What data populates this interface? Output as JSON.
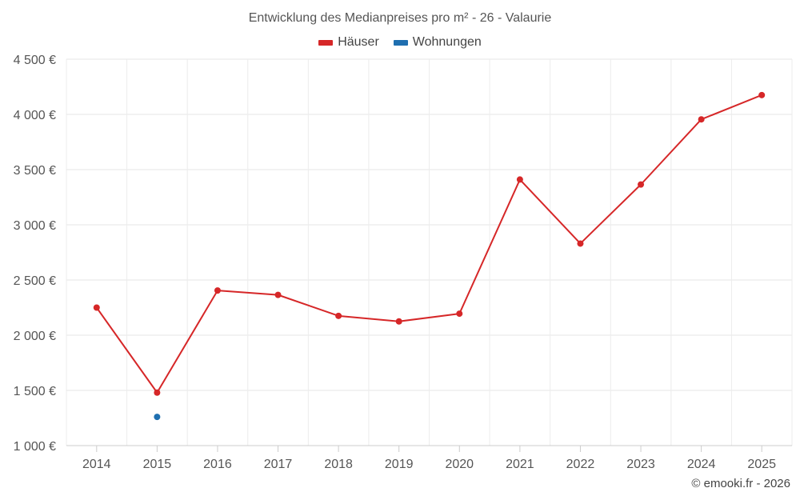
{
  "chart_data": {
    "type": "line",
    "title": "Entwicklung des Medianpreises pro m² - 26 - Valaurie",
    "xlabel": "",
    "ylabel": "",
    "categories": [
      "2014",
      "2015",
      "2016",
      "2017",
      "2018",
      "2019",
      "2020",
      "2021",
      "2022",
      "2023",
      "2024",
      "2025"
    ],
    "ylim": [
      1000,
      4500
    ],
    "yticks": [
      1000,
      1500,
      2000,
      2500,
      3000,
      3500,
      4000,
      4500
    ],
    "ytick_labels": [
      "1 000 €",
      "1 500 €",
      "2 000 €",
      "2 500 €",
      "3 000 €",
      "3 500 €",
      "4 000 €",
      "4 500 €"
    ],
    "grid": true,
    "legend_position": "top-center",
    "series": [
      {
        "name": "Häuser",
        "color": "#d62728",
        "values": [
          2250,
          1480,
          2405,
          2365,
          2175,
          2125,
          2195,
          3410,
          2830,
          3365,
          3955,
          4175
        ]
      },
      {
        "name": "Wohnungen",
        "color": "#1f6fb0",
        "values": [
          null,
          1260,
          null,
          null,
          null,
          null,
          null,
          null,
          null,
          null,
          null,
          null
        ]
      }
    ]
  },
  "credit": "© emooki.fr - 2026"
}
